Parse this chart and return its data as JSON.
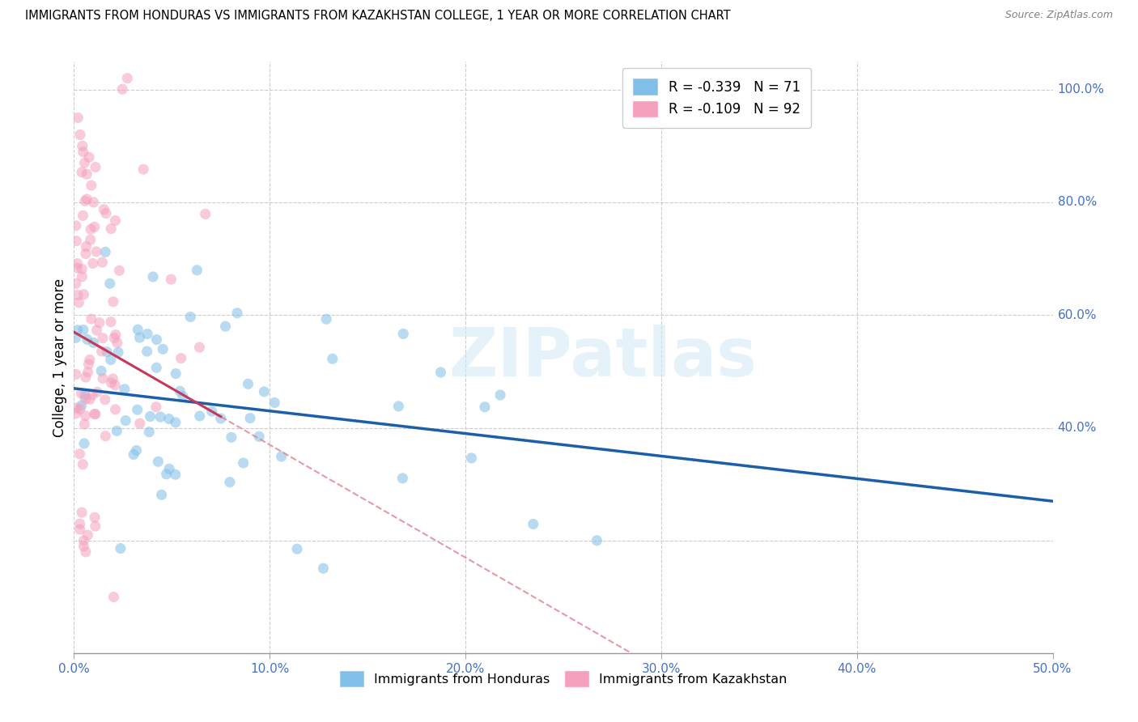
{
  "title": "IMMIGRANTS FROM HONDURAS VS IMMIGRANTS FROM KAZAKHSTAN COLLEGE, 1 YEAR OR MORE CORRELATION CHART",
  "source": "Source: ZipAtlas.com",
  "ylabel": "College, 1 year or more",
  "legend1_label": "R = -0.339   N = 71",
  "legend2_label": "R = -0.109   N = 92",
  "blue_color": "#7fbfe8",
  "pink_color": "#f4a0bc",
  "blue_line_color": "#1a5fa8",
  "pink_line_color": "#c8385a",
  "pink_dash_color": "#e08090",
  "R_blue": -0.339,
  "N_blue": 71,
  "R_pink": -0.109,
  "N_pink": 92,
  "xlim": [
    0.0,
    0.5
  ],
  "ylim": [
    0.0,
    1.05
  ],
  "right_y_labels": [
    [
      1.0,
      "100.0%"
    ],
    [
      0.8,
      "80.0%"
    ],
    [
      0.6,
      "60.0%"
    ],
    [
      0.4,
      "40.0%"
    ]
  ],
  "x_tick_labels": [
    "0.0%",
    "10.0%",
    "20.0%",
    "30.0%",
    "40.0%",
    "50.0%"
  ],
  "watermark": "ZIPatlas",
  "bottom_legend": [
    "Immigrants from Honduras",
    "Immigrants from Kazakhstan"
  ]
}
